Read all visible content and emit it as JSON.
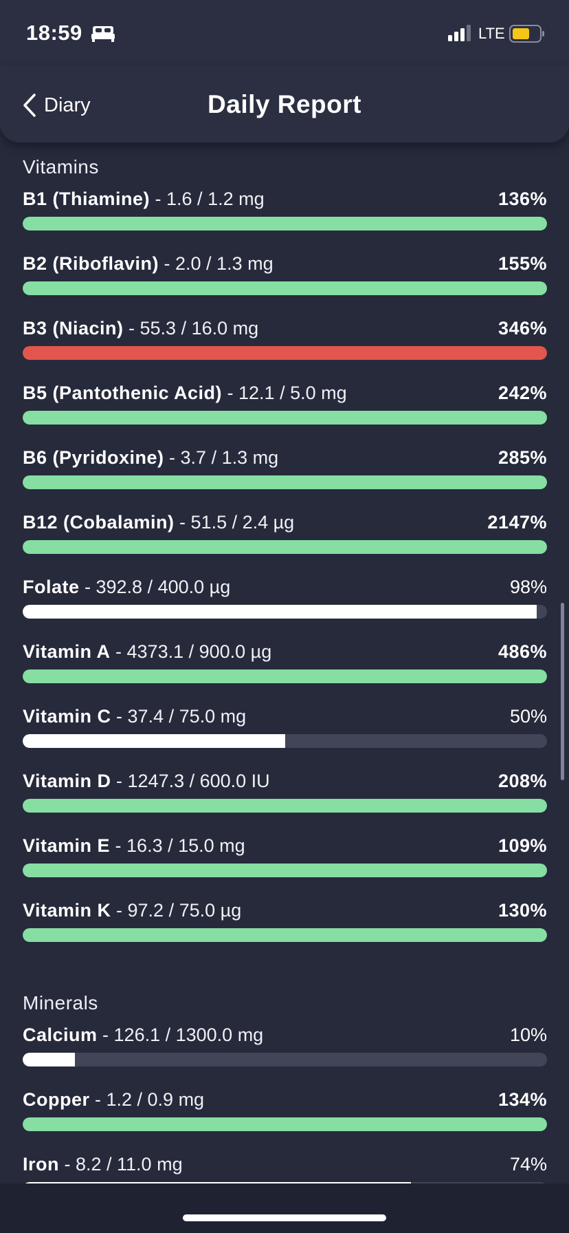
{
  "status_bar": {
    "time": "18:59",
    "network": "LTE",
    "icons": [
      "bed-icon",
      "signal-icon",
      "battery-icon"
    ],
    "battery_color": "#f5c518"
  },
  "nav": {
    "back_label": "Diary",
    "title": "Daily Report"
  },
  "colors": {
    "over_target": "#86dea2",
    "excess": "#e2564d",
    "under_target": "#ffffff",
    "track": "#414557"
  },
  "sections": [
    {
      "title": "Vitamins",
      "items": [
        {
          "name": "B1 (Thiamine)",
          "amount": " - 1.6 / 1.2 mg",
          "percent": "136%",
          "fill": 1.0,
          "status": "over"
        },
        {
          "name": "B2 (Riboflavin)",
          "amount": " - 2.0 / 1.3 mg",
          "percent": "155%",
          "fill": 1.0,
          "status": "over"
        },
        {
          "name": "B3 (Niacin)",
          "amount": " - 55.3 / 16.0 mg",
          "percent": "346%",
          "fill": 1.0,
          "status": "excess"
        },
        {
          "name": "B5 (Pantothenic Acid)",
          "amount": " - 12.1 / 5.0 mg",
          "percent": "242%",
          "fill": 1.0,
          "status": "over"
        },
        {
          "name": "B6 (Pyridoxine)",
          "amount": " - 3.7 / 1.3 mg",
          "percent": "285%",
          "fill": 1.0,
          "status": "over"
        },
        {
          "name": "B12 (Cobalamin)",
          "amount": " - 51.5 / 2.4 µg",
          "percent": "2147%",
          "fill": 1.0,
          "status": "over"
        },
        {
          "name": "Folate",
          "amount": " - 392.8 / 400.0 µg",
          "percent": "98%",
          "fill": 0.98,
          "status": "under"
        },
        {
          "name": "Vitamin A",
          "amount": " - 4373.1 / 900.0 µg",
          "percent": "486%",
          "fill": 1.0,
          "status": "over"
        },
        {
          "name": "Vitamin C",
          "amount": " - 37.4 / 75.0 mg",
          "percent": "50%",
          "fill": 0.5,
          "status": "under"
        },
        {
          "name": "Vitamin D",
          "amount": " - 1247.3 / 600.0 IU",
          "percent": "208%",
          "fill": 1.0,
          "status": "over"
        },
        {
          "name": "Vitamin E",
          "amount": " - 16.3 / 15.0 mg",
          "percent": "109%",
          "fill": 1.0,
          "status": "over"
        },
        {
          "name": "Vitamin K",
          "amount": " - 97.2 / 75.0 µg",
          "percent": "130%",
          "fill": 1.0,
          "status": "over"
        }
      ]
    },
    {
      "title": "Minerals",
      "items": [
        {
          "name": "Calcium",
          "amount": " - 126.1 / 1300.0 mg",
          "percent": "10%",
          "fill": 0.1,
          "status": "under"
        },
        {
          "name": "Copper",
          "amount": " - 1.2 / 0.9 mg",
          "percent": "134%",
          "fill": 1.0,
          "status": "over"
        },
        {
          "name": "Iron",
          "amount": " - 8.2 / 11.0 mg",
          "percent": "74%",
          "fill": 0.74,
          "status": "under"
        }
      ]
    }
  ]
}
